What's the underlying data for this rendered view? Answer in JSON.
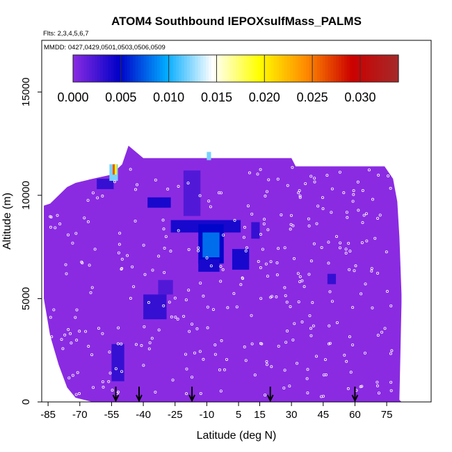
{
  "chart_data": {
    "type": "heatmap",
    "title": "ATOM4 Southbound IEPOXsulfMass_PALMS",
    "flights_label": "Flts: 2,3,4,5,6,7",
    "dates_label": "MMDD: 0427,0429,0501,0503,0506,0509",
    "xlabel": "Latitude (deg N)",
    "ylabel": "Altitude (m)",
    "x_ticks": [
      -85,
      -70,
      -55,
      -40,
      -25,
      -10,
      5,
      15,
      30,
      45,
      60,
      75
    ],
    "x_tick_labels": [
      "-85",
      "-70",
      "-55",
      "-40",
      "-25",
      "-10",
      "5",
      "15",
      "30",
      "45",
      "60",
      "75"
    ],
    "y_ticks": [
      0,
      5000,
      10000,
      15000
    ],
    "y_tick_labels": [
      "0",
      "5000",
      "10000",
      "15000"
    ],
    "xlim": [
      -88,
      96
    ],
    "ylim": [
      0,
      17500
    ],
    "colorbar": {
      "range": [
        0,
        0.034
      ],
      "ticks": [
        0.0,
        0.005,
        0.01,
        0.015,
        0.02,
        0.025,
        0.03
      ],
      "tick_labels": [
        "0.000",
        "0.005",
        "0.010",
        "0.015",
        "0.020",
        "0.025",
        "0.030"
      ],
      "colors": [
        "#8a2be2",
        "#0000c8",
        "#00aaff",
        "#ffffff",
        "#ffff00",
        "#ff8c00",
        "#cc0000",
        "#a52a2a"
      ]
    },
    "background_value": 0.0,
    "coverage_profile": [
      {
        "lat": -87,
        "bottom": 5000,
        "top": 9500
      },
      {
        "lat": -84,
        "bottom": 3200,
        "top": 9600
      },
      {
        "lat": -80,
        "bottom": 1800,
        "top": 10000
      },
      {
        "lat": -76,
        "bottom": 700,
        "top": 10400
      },
      {
        "lat": -72,
        "bottom": 200,
        "top": 10600
      },
      {
        "lat": -64,
        "bottom": 0,
        "top": 10800
      },
      {
        "lat": -55,
        "bottom": 0,
        "top": 11000
      },
      {
        "lat": -50,
        "bottom": 0,
        "top": 11500
      },
      {
        "lat": -47,
        "bottom": 0,
        "top": 12400
      },
      {
        "lat": -40,
        "bottom": 0,
        "top": 11800
      },
      {
        "lat": 30,
        "bottom": 0,
        "top": 11800
      },
      {
        "lat": 32,
        "bottom": 0,
        "top": 11400
      },
      {
        "lat": 74,
        "bottom": 0,
        "top": 11400
      },
      {
        "lat": 78,
        "bottom": 0,
        "top": 10800
      },
      {
        "lat": 80,
        "bottom": 0,
        "top": 9700
      },
      {
        "lat": 81,
        "bottom": 0,
        "top": 8000
      },
      {
        "lat": 82,
        "bottom": 0,
        "top": 5200
      },
      {
        "lat": 82,
        "bottom": 0,
        "top": 4800
      },
      {
        "lat": 81,
        "bottom": 100,
        "top": 100
      }
    ],
    "patches": [
      {
        "lat0": -27,
        "lat1": 6,
        "alt0": 8200,
        "alt1": 8800,
        "value": 0.004
      },
      {
        "lat0": -14,
        "lat1": -2,
        "alt0": 6700,
        "alt1": 8600,
        "value": 0.005
      },
      {
        "lat0": -12,
        "lat1": -4,
        "alt0": 7000,
        "alt1": 8200,
        "value": 0.008
      },
      {
        "lat0": -14,
        "lat1": -4,
        "alt0": 6300,
        "alt1": 6900,
        "value": 0.004
      },
      {
        "lat0": 2,
        "lat1": 10,
        "alt0": 6400,
        "alt1": 7400,
        "value": 0.004
      },
      {
        "lat0": -38,
        "lat1": -27,
        "alt0": 9400,
        "alt1": 9900,
        "value": 0.004
      },
      {
        "lat0": -40,
        "lat1": -29,
        "alt0": 4000,
        "alt1": 5200,
        "value": 0.003
      },
      {
        "lat0": -33,
        "lat1": -26,
        "alt0": 5200,
        "alt1": 5900,
        "value": 0.002
      },
      {
        "lat0": -55,
        "lat1": -49,
        "alt0": 1000,
        "alt1": 2800,
        "value": 0.003
      },
      {
        "lat0": -62,
        "lat1": -54,
        "alt0": 10300,
        "alt1": 10800,
        "value": 0.003
      },
      {
        "lat0": -56,
        "lat1": -52,
        "alt0": 10700,
        "alt1": 11500,
        "value": 0.012
      },
      {
        "lat0": -54.5,
        "lat1": -53.5,
        "alt0": 11000,
        "alt1": 11500,
        "value": 0.026
      },
      {
        "lat0": -53.5,
        "lat1": -52.5,
        "alt0": 11000,
        "alt1": 11500,
        "value": 0.02
      },
      {
        "lat0": -10,
        "lat1": -8,
        "alt0": 11700,
        "alt1": 12100,
        "value": 0.012
      },
      {
        "lat0": 11,
        "lat1": 15,
        "alt0": 7900,
        "alt1": 8700,
        "value": 0.003
      },
      {
        "lat0": -21,
        "lat1": -13,
        "alt0": 9000,
        "alt1": 11200,
        "value": 0.002
      },
      {
        "lat0": 47,
        "lat1": 51,
        "alt0": 5700,
        "alt1": 6200,
        "value": 0.003
      }
    ],
    "flight_marker_lats": [
      -53,
      -42,
      -17,
      20,
      60
    ]
  }
}
